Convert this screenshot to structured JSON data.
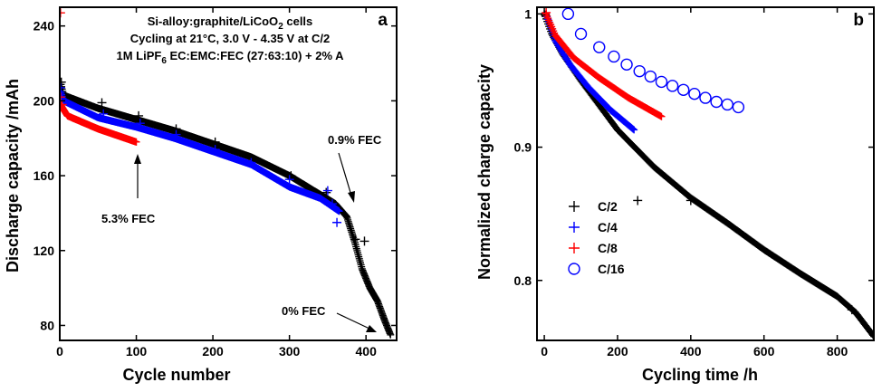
{
  "chart_data": [
    {
      "type": "scatter",
      "panel": "a",
      "title_lines": [
        "Si-alloy:graphite/LiCoO2 cells",
        "Cycling at 21°C, 3.0 V - 4.35 V at C/2",
        "1M LiPF6 EC:EMC:FEC (27:63:10) + 2% A"
      ],
      "title_parts": {
        "line1_before": "Si-alloy:graphite/LiCoO",
        "line1_sub": "2",
        "line1_after": " cells",
        "line2": "Cycling at 21°C, 3.0 V - 4.35 V at C/2",
        "line3_before": "1M LiPF",
        "line3_sub": "6",
        "line3_after": " EC:EMC:FEC (27:63:10) + 2% A"
      },
      "xlabel": "Cycle number",
      "ylabel": "Discharge capacity /mAh",
      "xlim": [
        0,
        440
      ],
      "ylim": [
        72,
        250
      ],
      "xticks": [
        0,
        100,
        200,
        300,
        400
      ],
      "yticks": [
        80,
        120,
        160,
        200,
        240
      ],
      "annotations": [
        "0.9% FEC",
        "5.3% FEC",
        "0% FEC"
      ],
      "series": [
        {
          "color": "#000000",
          "marker": "plus",
          "dense": [
            [
              1,
              210
            ],
            [
              5,
              203
            ],
            [
              50,
              196
            ],
            [
              100,
              190
            ],
            [
              150,
              184
            ],
            [
              200,
              177
            ],
            [
              250,
              170
            ],
            [
              300,
              160
            ],
            [
              340,
              150
            ],
            [
              360,
              145
            ],
            [
              375,
              138
            ],
            [
              385,
              125
            ],
            [
              395,
              110
            ],
            [
              405,
              100
            ],
            [
              415,
              93
            ],
            [
              425,
              82
            ],
            [
              432,
              75
            ]
          ],
          "extra_points": [
            [
              2,
              210
            ],
            [
              55,
              199
            ],
            [
              103,
              192
            ],
            [
              152,
              185
            ],
            [
              203,
              178
            ],
            [
              252,
              169
            ],
            [
              302,
              160
            ],
            [
              348,
              151
            ],
            [
              386,
              126
            ],
            [
              398,
              125
            ]
          ]
        },
        {
          "color": "#0000ff",
          "marker": "plus",
          "dense": [
            [
              1,
              205
            ],
            [
              5,
              200
            ],
            [
              50,
              191
            ],
            [
              100,
              186
            ],
            [
              150,
              180
            ],
            [
              200,
              173
            ],
            [
              250,
              166
            ],
            [
              300,
              154
            ],
            [
              340,
              148
            ],
            [
              365,
              141
            ]
          ],
          "extra_points": [
            [
              1,
              207
            ],
            [
              57,
              193
            ],
            [
              105,
              188
            ],
            [
              152,
              182
            ],
            [
              203,
              174
            ],
            [
              250,
              167
            ],
            [
              300,
              158
            ],
            [
              350,
              152
            ],
            [
              356,
              145
            ],
            [
              362,
              135
            ]
          ]
        },
        {
          "color": "#ff0000",
          "marker": "plus",
          "dense": [
            [
              1,
              198
            ],
            [
              10,
              192
            ],
            [
              50,
              185
            ],
            [
              100,
              178
            ]
          ],
          "extra_points": [
            [
              1,
              247
            ],
            [
              1,
              202
            ],
            [
              3,
              198
            ]
          ]
        }
      ]
    },
    {
      "type": "scatter",
      "panel": "b",
      "xlabel": "Cycling time /h",
      "ylabel": "Normalized charge capacity",
      "xlim": [
        -20,
        900
      ],
      "ylim": [
        0.755,
        1.005
      ],
      "xticks": [
        0,
        200,
        400,
        600,
        800
      ],
      "yticks": [
        0.8,
        0.9,
        1
      ],
      "series": [
        {
          "name": "C/2",
          "color": "#000000",
          "marker": "plus",
          "dense": [
            [
              0,
              1.0
            ],
            [
              20,
              0.985
            ],
            [
              50,
              0.97
            ],
            [
              100,
              0.95
            ],
            [
              200,
              0.913
            ],
            [
              300,
              0.885
            ],
            [
              400,
              0.862
            ],
            [
              500,
              0.843
            ],
            [
              600,
              0.823
            ],
            [
              700,
              0.805
            ],
            [
              800,
              0.788
            ],
            [
              850,
              0.776
            ],
            [
              900,
              0.758
            ]
          ],
          "extra_points": [
            [
              3,
              0.999
            ],
            [
              255,
              0.86
            ],
            [
              400,
              0.86
            ],
            [
              840,
              0.778
            ]
          ]
        },
        {
          "name": "C/4",
          "color": "#0000ff",
          "marker": "plus",
          "dense": [
            [
              5,
              1.0
            ],
            [
              30,
              0.98
            ],
            [
              70,
              0.962
            ],
            [
              120,
              0.945
            ],
            [
              180,
              0.928
            ],
            [
              245,
              0.913
            ]
          ],
          "extra_points": []
        },
        {
          "name": "C/8",
          "color": "#ff0000",
          "marker": "plus",
          "dense": [
            [
              5,
              1.0
            ],
            [
              30,
              0.984
            ],
            [
              80,
              0.967
            ],
            [
              150,
              0.952
            ],
            [
              230,
              0.937
            ],
            [
              320,
              0.923
            ]
          ],
          "extra_points": [
            [
              5,
              1.001
            ]
          ]
        },
        {
          "name": "C/16",
          "color": "#0000ff",
          "marker": "circle",
          "x": [
            65,
            100,
            150,
            190,
            225,
            260,
            290,
            320,
            350,
            380,
            410,
            440,
            470,
            500,
            530
          ],
          "y": [
            1.0,
            0.985,
            0.975,
            0.968,
            0.962,
            0.957,
            0.953,
            0.949,
            0.946,
            0.943,
            0.94,
            0.937,
            0.934,
            0.932,
            0.93
          ]
        }
      ]
    }
  ]
}
